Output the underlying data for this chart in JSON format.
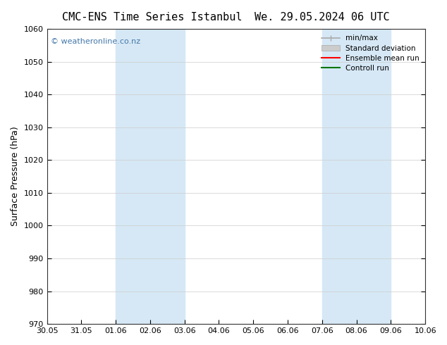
{
  "title_left": "CMC-ENS Time Series Istanbul",
  "title_right": "We. 29.05.2024 06 UTC",
  "ylabel": "Surface Pressure (hPa)",
  "ylim": [
    970,
    1060
  ],
  "yticks": [
    970,
    980,
    990,
    1000,
    1010,
    1020,
    1030,
    1040,
    1050,
    1060
  ],
  "xlim": [
    0,
    11
  ],
  "xtick_positions": [
    0,
    1,
    2,
    3,
    4,
    5,
    6,
    7,
    8,
    9,
    10,
    11
  ],
  "xtick_labels": [
    "30.05",
    "31.05",
    "01.06",
    "02.06",
    "03.06",
    "04.06",
    "05.06",
    "06.06",
    "07.06",
    "08.06",
    "09.06",
    "10.06"
  ],
  "shaded_regions": [
    {
      "start": 2,
      "end": 4,
      "color": "#d6e8f5"
    },
    {
      "start": 8,
      "end": 10,
      "color": "#d6e8f5"
    }
  ],
  "watermark": "© weatheronline.co.nz",
  "watermark_color": "#4477aa",
  "bg_color": "#ffffff",
  "plot_bg_color": "#ffffff",
  "grid_color": "#cccccc",
  "title_fontsize": 11,
  "tick_fontsize": 8,
  "label_fontsize": 9
}
